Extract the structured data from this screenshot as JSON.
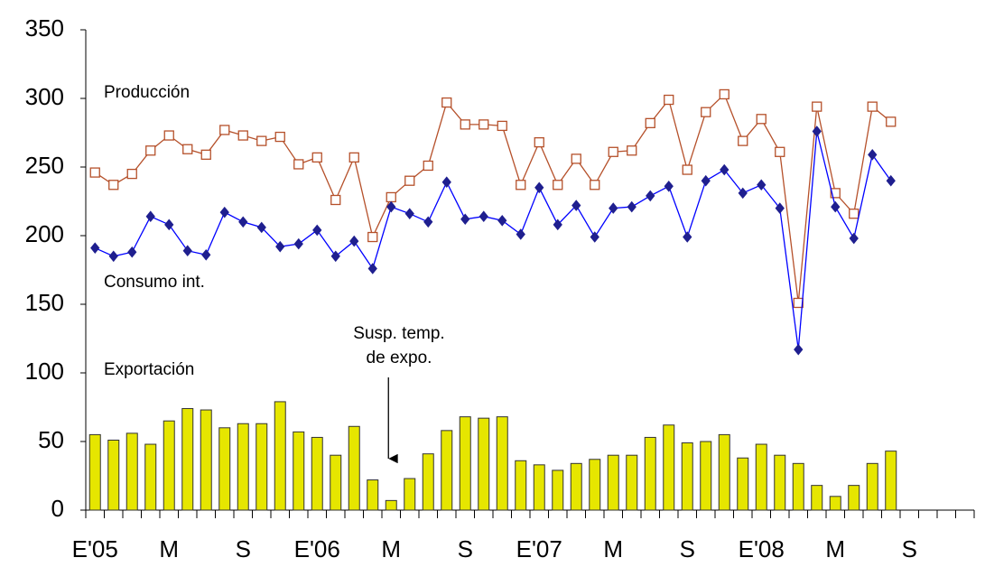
{
  "chart_data": {
    "type": "bar_line",
    "categories": [
      "E'05",
      null,
      null,
      null,
      "M",
      null,
      null,
      null,
      "S",
      null,
      null,
      null,
      "E'06",
      null,
      null,
      null,
      "M",
      null,
      null,
      null,
      "S",
      null,
      null,
      null,
      "E'07",
      null,
      null,
      null,
      "M",
      null,
      null,
      null,
      "S",
      null,
      null,
      null,
      "E'08",
      null,
      null,
      null,
      "M",
      null,
      null,
      null,
      "S",
      null,
      null,
      null
    ],
    "series": [
      {
        "name": "Producción",
        "kind": "line",
        "color": "#b5502a",
        "marker": "square",
        "values": [
          246,
          237,
          245,
          262,
          273,
          263,
          259,
          277,
          273,
          269,
          272,
          252,
          257,
          226,
          257,
          199,
          228,
          240,
          251,
          297,
          281,
          281,
          280,
          237,
          268,
          237,
          256,
          237,
          261,
          262,
          282,
          299,
          248,
          290,
          303,
          269,
          285,
          261,
          151,
          294,
          231,
          216,
          294,
          283,
          null,
          null,
          null,
          null
        ]
      },
      {
        "name": "Consumo int.",
        "kind": "line",
        "color": "#0000ff",
        "marker": "diamond",
        "values": [
          191,
          185,
          188,
          214,
          208,
          189,
          186,
          217,
          210,
          206,
          192,
          194,
          204,
          185,
          196,
          176,
          221,
          216,
          210,
          239,
          212,
          214,
          211,
          201,
          235,
          208,
          222,
          199,
          220,
          221,
          229,
          236,
          199,
          240,
          248,
          231,
          237,
          220,
          117,
          276,
          221,
          198,
          259,
          240,
          null,
          null,
          null,
          null
        ]
      },
      {
        "name": "Exportación",
        "kind": "bar",
        "color": "#e6e600",
        "values": [
          55,
          51,
          56,
          48,
          65,
          74,
          73,
          60,
          63,
          63,
          79,
          57,
          53,
          40,
          61,
          22,
          7,
          23,
          41,
          58,
          68,
          67,
          68,
          36,
          33,
          29,
          34,
          37,
          40,
          40,
          53,
          62,
          49,
          50,
          55,
          38,
          48,
          40,
          34,
          18,
          10,
          18,
          34,
          43,
          null,
          null,
          null,
          null
        ]
      }
    ],
    "annotation": [
      "Susp. temp.",
      "de expo."
    ],
    "ylim": [
      0,
      350
    ],
    "yticks": [
      0,
      50,
      100,
      150,
      200,
      250,
      300,
      350
    ],
    "grid": false
  }
}
